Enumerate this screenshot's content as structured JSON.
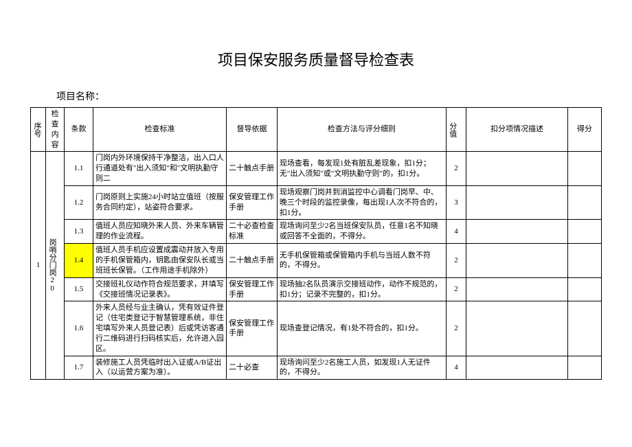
{
  "title": "项目保安服务质量督导检查表",
  "project_label": "项目名称：",
  "headers": {
    "seq": "序号",
    "category": "检查内容",
    "clause": "条款",
    "standard": "检查标准",
    "basis": "督导依据",
    "method": "检查方法与评分细则",
    "score": "分值",
    "deduct_desc": "扣分项情况描述",
    "got": "得分"
  },
  "group": {
    "seq": "1",
    "category": "岗哨分门岗20"
  },
  "rows": [
    {
      "clause": "1.1",
      "standard": "门岗内外环境保持干净整洁，出入口人行通道处有\"出入须知\"和\"文明执勤守则二",
      "basis": "二十触点手册",
      "method": "现场查看，每发现1处有脏乱差现象，扣1分；无\"出入须知\"或\"文明执勤守则\"的，扣1分。",
      "score": "2",
      "highlight": false
    },
    {
      "clause": "1.2",
      "standard": "门岗原则上实施24小时站立值班（按服务合同约定），站姿符合要求。",
      "basis": "保安管理工作手册",
      "method": "现场观察门岗并到消监控中心调看门岗早、中、晚三个时段的监控录像，每出现1人次不符合的，扣1分。",
      "score": "3",
      "highlight": false
    },
    {
      "clause": "1.3",
      "standard": "值班人员应知晓外来人员、外来车辆管理的作业流程。",
      "basis": "二十必查检查标准",
      "method": "现场询问至少2名当班保安队员，任意1名不知晓或回答不全面的，不得分。",
      "score": "4",
      "highlight": false
    },
    {
      "clause": "1.4",
      "standard": "值班人员手机应设置成震动并放入专用的手机保管箱内，钥匙由保安队长或当班班长保管。（工作用途手机除外）",
      "basis": "二十触点手册",
      "method": "无手机保管箱或保管箱内手机与当班人数不符的，不得分。",
      "score": "2",
      "highlight": true
    },
    {
      "clause": "1.5",
      "standard": "交接班礼仪动作符合规范要求，并填写《交接班情况记录表》。",
      "basis": "保安管理工作手册",
      "method": "现场抽2名队员演示交接班动作，动作不规范的，扣1分；记录不完整的，扣1分。",
      "score": "2",
      "highlight": false
    },
    {
      "clause": "1.6",
      "standard": "外来人员经与业主确认，凭有效证件登记（住宅类登记于智慧管理系统，非住宅填写外来人员登记表）后或凭访客通行二维码进行扫码核实后，允许进入园区。",
      "basis": "保安管理工作手册",
      "method": "现场查登记情况，有1处不符合的，扣1分。",
      "score": "2",
      "highlight": false
    },
    {
      "clause": "1.7",
      "standard": "装修施工人员凭临时出入证或A/B证出入（以运营方案为准）。",
      "basis": "二十必查",
      "method": "现场询问至少2名施工人员，如发现1人无证件的，不得分。",
      "score": "4",
      "highlight": false
    }
  ]
}
